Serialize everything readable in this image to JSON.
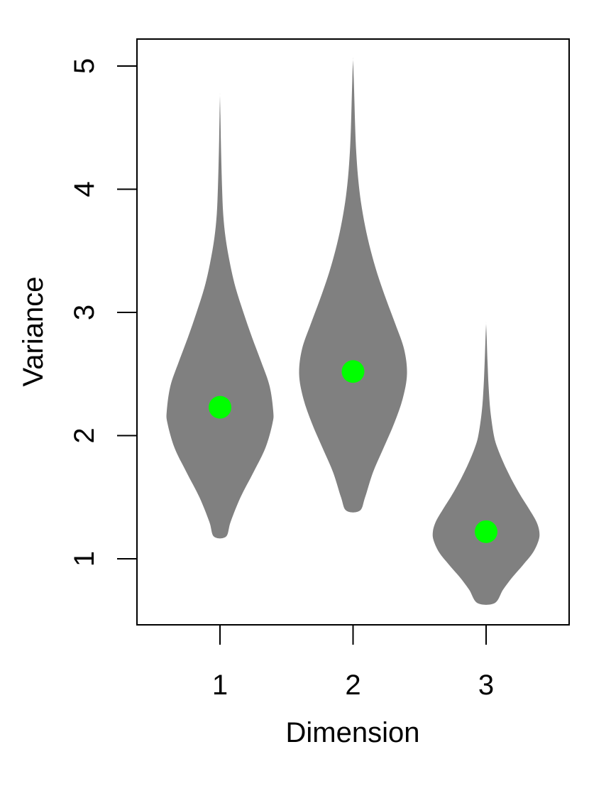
{
  "chart_data": {
    "type": "violin",
    "title": "",
    "xlabel": "Dimension",
    "ylabel": "Variance",
    "categories": [
      "1",
      "2",
      "3"
    ],
    "ylim": [
      0.5,
      5.2
    ],
    "yticks": [
      "1",
      "2",
      "3",
      "4",
      "5"
    ],
    "grid": false,
    "legend": "none",
    "colors": {
      "violin_fill": "#808080",
      "median_point": "#00ff00",
      "axis": "#000000"
    },
    "violins": [
      {
        "category": "1",
        "min": 1.18,
        "max": 4.76,
        "median": 2.23,
        "profile": [
          [
            1.18,
            0.085
          ],
          [
            1.3,
            0.15
          ],
          [
            1.5,
            0.29
          ],
          [
            1.7,
            0.47
          ],
          [
            1.9,
            0.64
          ],
          [
            2.1,
            0.74
          ],
          [
            2.2,
            0.75
          ],
          [
            2.4,
            0.7
          ],
          [
            2.6,
            0.58
          ],
          [
            2.8,
            0.45
          ],
          [
            3.0,
            0.33
          ],
          [
            3.2,
            0.22
          ],
          [
            3.4,
            0.14
          ],
          [
            3.6,
            0.08
          ],
          [
            3.8,
            0.045
          ],
          [
            4.0,
            0.03
          ],
          [
            4.2,
            0.02
          ],
          [
            4.4,
            0.012
          ],
          [
            4.6,
            0.006
          ],
          [
            4.76,
            0.0
          ]
        ]
      },
      {
        "category": "2",
        "min": 1.39,
        "max": 5.05,
        "median": 2.52,
        "profile": [
          [
            1.39,
            0.095
          ],
          [
            1.5,
            0.17
          ],
          [
            1.7,
            0.28
          ],
          [
            1.9,
            0.43
          ],
          [
            2.1,
            0.58
          ],
          [
            2.3,
            0.7
          ],
          [
            2.5,
            0.76
          ],
          [
            2.7,
            0.72
          ],
          [
            2.9,
            0.6
          ],
          [
            3.1,
            0.47
          ],
          [
            3.3,
            0.35
          ],
          [
            3.5,
            0.25
          ],
          [
            3.7,
            0.17
          ],
          [
            3.9,
            0.11
          ],
          [
            4.1,
            0.07
          ],
          [
            4.3,
            0.045
          ],
          [
            4.5,
            0.03
          ],
          [
            4.7,
            0.02
          ],
          [
            4.9,
            0.01
          ],
          [
            5.05,
            0.0
          ]
        ]
      },
      {
        "category": "3",
        "min": 0.64,
        "max": 2.91,
        "median": 1.22,
        "profile": [
          [
            0.64,
            0.12
          ],
          [
            0.75,
            0.24
          ],
          [
            0.85,
            0.37
          ],
          [
            0.95,
            0.52
          ],
          [
            1.05,
            0.66
          ],
          [
            1.15,
            0.74
          ],
          [
            1.22,
            0.75
          ],
          [
            1.3,
            0.71
          ],
          [
            1.4,
            0.61
          ],
          [
            1.5,
            0.5
          ],
          [
            1.6,
            0.4
          ],
          [
            1.7,
            0.31
          ],
          [
            1.8,
            0.23
          ],
          [
            1.9,
            0.16
          ],
          [
            2.0,
            0.11
          ],
          [
            2.2,
            0.06
          ],
          [
            2.4,
            0.035
          ],
          [
            2.6,
            0.02
          ],
          [
            2.8,
            0.008
          ],
          [
            2.91,
            0.0
          ]
        ]
      }
    ]
  }
}
